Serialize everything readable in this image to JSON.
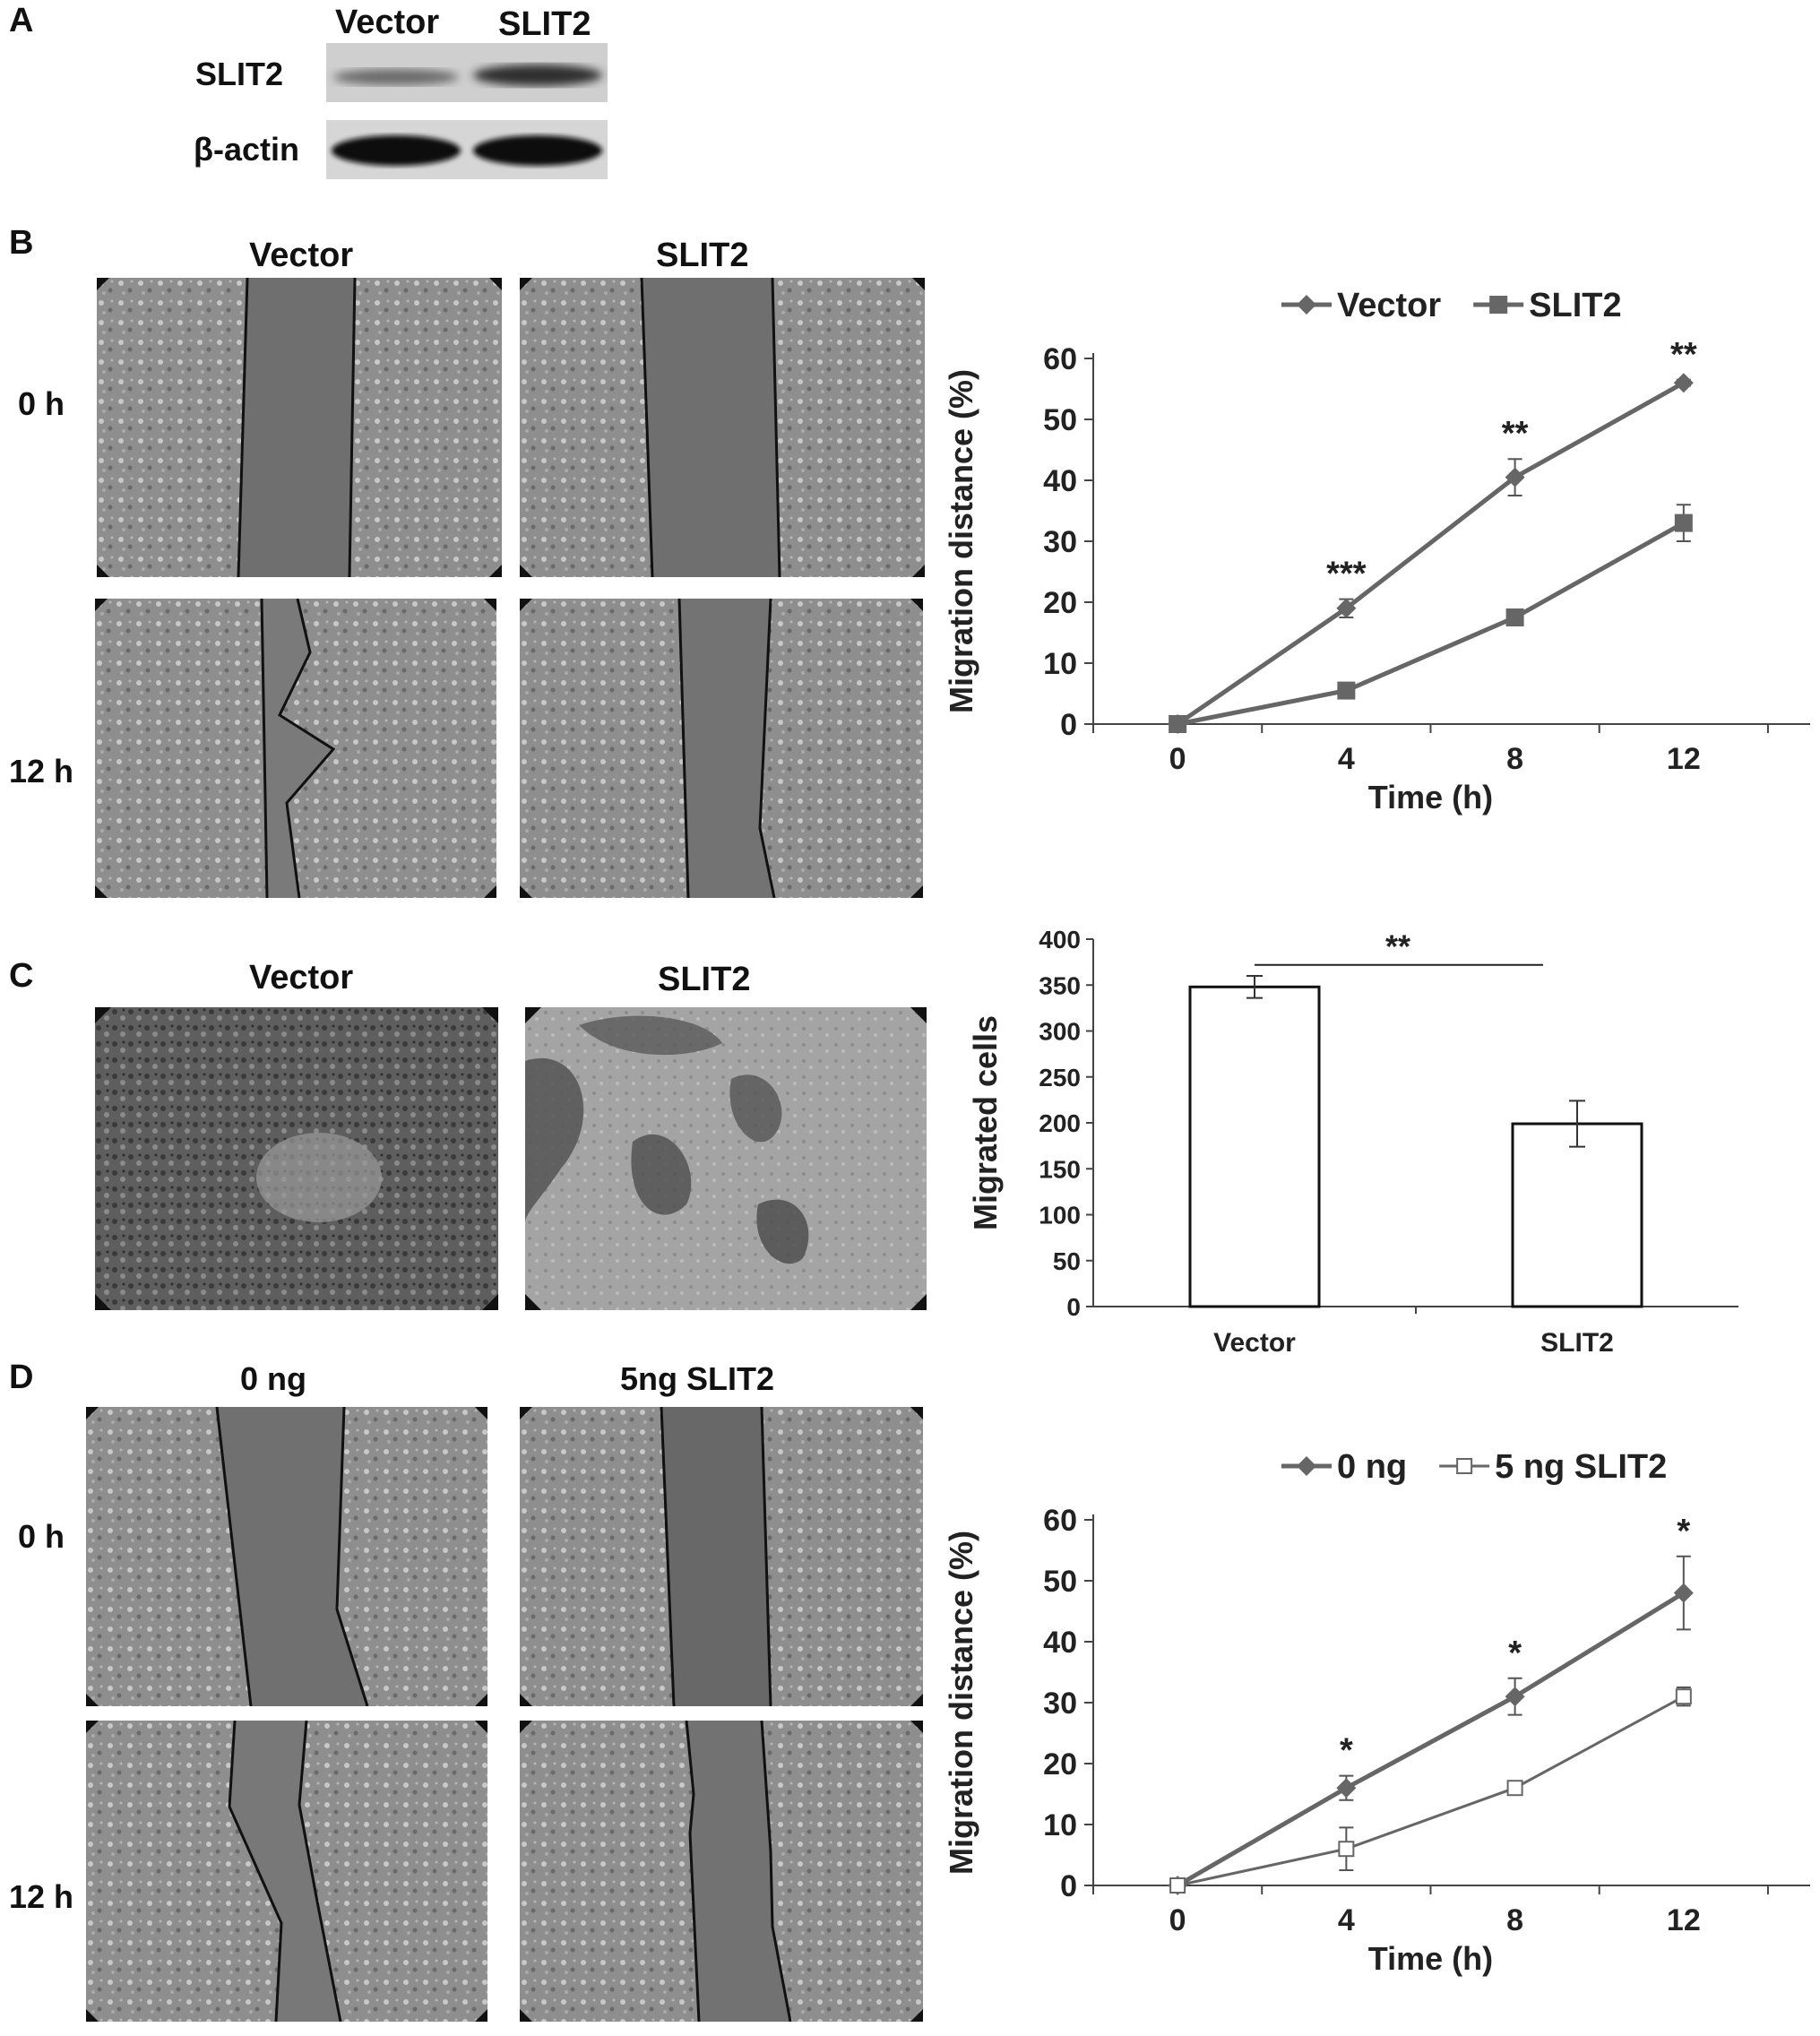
{
  "panelA": {
    "letter": "A",
    "columns": [
      "Vector",
      "SLIT2"
    ],
    "rows": [
      "SLIT2",
      "β-actin"
    ]
  },
  "panelB": {
    "letter": "B",
    "columns": [
      "Vector",
      "SLIT2"
    ],
    "rows": [
      "0 h",
      "12 h"
    ]
  },
  "panelC": {
    "letter": "C",
    "columns": [
      "Vector",
      "SLIT2"
    ]
  },
  "panelD": {
    "letter": "D",
    "columns": [
      "0 ng",
      "5ng SLIT2"
    ],
    "rows": [
      "0 h",
      "12 h"
    ]
  },
  "chart_data": [
    {
      "id": "B-line",
      "type": "line",
      "x": [
        0,
        4,
        8,
        12
      ],
      "xlabel": "Time (h)",
      "ylabel": "Migration distance  (%)",
      "ylim": [
        0,
        60
      ],
      "yticks": [
        0,
        10,
        20,
        30,
        40,
        50,
        60
      ],
      "xticks": [
        0,
        4,
        8,
        12
      ],
      "legend_position": "top",
      "series": [
        {
          "name": "Vector",
          "marker": "diamond",
          "values": [
            0,
            19,
            40.5,
            56
          ],
          "errors": [
            0,
            1.5,
            3,
            0.5
          ],
          "color": "#666666"
        },
        {
          "name": "SLIT2",
          "marker": "square",
          "values": [
            0,
            5.5,
            17.5,
            33
          ],
          "errors": [
            0,
            0.5,
            0.5,
            3
          ],
          "color": "#666666"
        }
      ],
      "annotations": [
        {
          "x": 4,
          "text": "***"
        },
        {
          "x": 8,
          "text": "**"
        },
        {
          "x": 12,
          "text": "**"
        }
      ]
    },
    {
      "id": "C-bar",
      "type": "bar",
      "categories": [
        "Vector",
        "SLIT2"
      ],
      "values": [
        348,
        199
      ],
      "errors": [
        12,
        25
      ],
      "ylabel": "Migrated cells",
      "ylim": [
        0,
        400
      ],
      "yticks": [
        0,
        50,
        100,
        150,
        200,
        250,
        300,
        350,
        400
      ],
      "significance": "**"
    },
    {
      "id": "D-line",
      "type": "line",
      "x": [
        0,
        4,
        8,
        12
      ],
      "xlabel": "Time (h)",
      "ylabel": "Migration distance  (%)",
      "ylim": [
        0,
        60
      ],
      "yticks": [
        0,
        10,
        20,
        30,
        40,
        50,
        60
      ],
      "xticks": [
        0,
        4,
        8,
        12
      ],
      "legend_position": "top",
      "series": [
        {
          "name": "0 ng",
          "marker": "diamond",
          "values": [
            0,
            16,
            31,
            48
          ],
          "errors": [
            0,
            2,
            3,
            6
          ],
          "color": "#666666"
        },
        {
          "name": "5 ng SLIT2",
          "marker": "open-square",
          "values": [
            0,
            6,
            16,
            31
          ],
          "errors": [
            0,
            3.5,
            1,
            1.5
          ],
          "color": "#666666"
        }
      ],
      "annotations": [
        {
          "x": 4,
          "text": "*"
        },
        {
          "x": 8,
          "text": "*"
        },
        {
          "x": 12,
          "text": "*"
        }
      ]
    }
  ]
}
